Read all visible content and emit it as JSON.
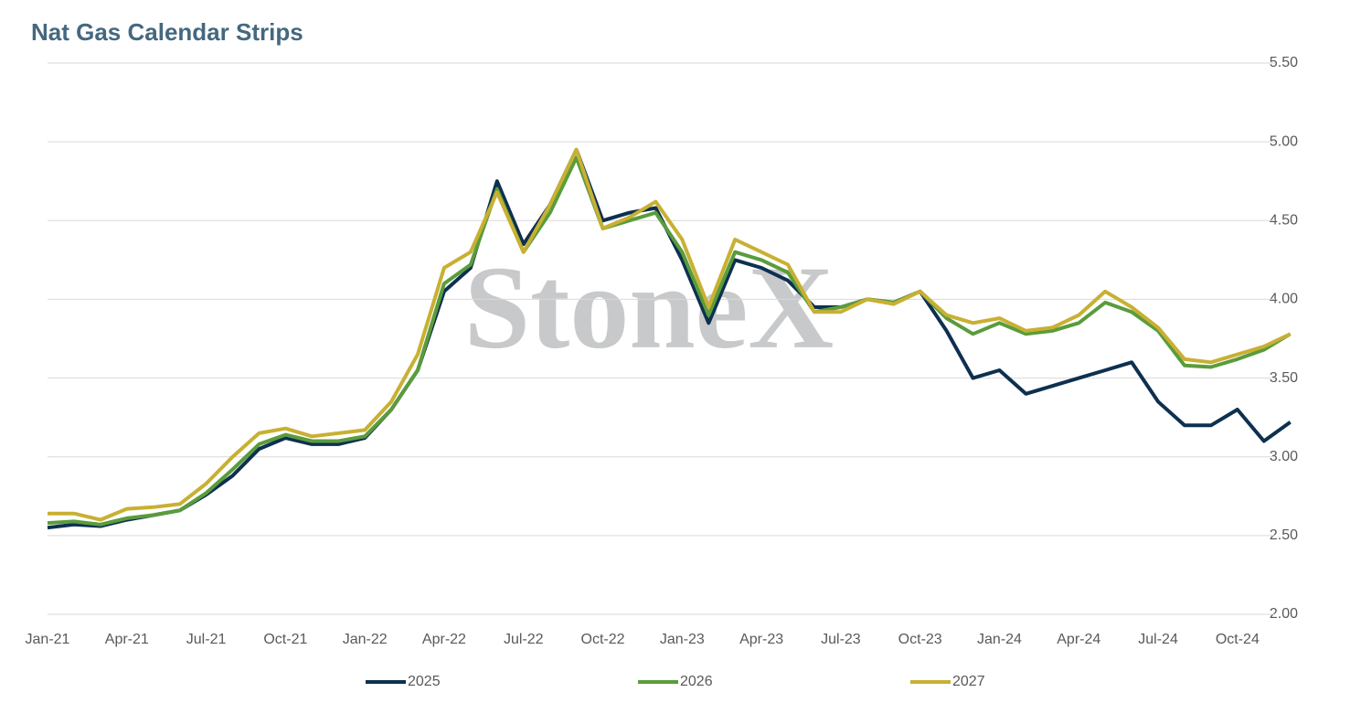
{
  "chart_data": {
    "type": "line",
    "title": "Nat Gas Calendar Strips",
    "watermark": "StoneX",
    "categories": [
      "Jan-21",
      null,
      null,
      "Apr-21",
      null,
      null,
      "Jul-21",
      null,
      null,
      "Oct-21",
      null,
      null,
      "Jan-22",
      null,
      null,
      "Apr-22",
      null,
      null,
      "Jul-22",
      null,
      null,
      "Oct-22",
      null,
      null,
      "Jan-23",
      null,
      null,
      "Apr-23",
      null,
      null,
      "Jul-23",
      null,
      null,
      "Oct-23",
      null,
      null,
      "Jan-24",
      null,
      null,
      "Apr-24",
      null,
      null,
      "Jul-24",
      null,
      null,
      "Oct-24",
      null,
      null
    ],
    "series": [
      {
        "name": "2025",
        "color": "#0e3050",
        "values": [
          2.55,
          2.57,
          2.56,
          2.6,
          2.63,
          2.66,
          2.76,
          2.88,
          3.05,
          3.12,
          3.08,
          3.08,
          3.12,
          3.3,
          3.55,
          4.05,
          4.2,
          4.75,
          4.35,
          4.6,
          4.95,
          4.5,
          4.55,
          4.58,
          4.25,
          3.85,
          4.25,
          4.2,
          4.12,
          3.95,
          3.95,
          4.0,
          3.98,
          4.05,
          3.8,
          3.5,
          3.55,
          3.4,
          3.45,
          3.5,
          3.55,
          3.6,
          3.35,
          3.2,
          3.2,
          3.3,
          3.1,
          3.22
        ]
      },
      {
        "name": "2026",
        "color": "#5a9c3c",
        "values": [
          2.58,
          2.59,
          2.57,
          2.61,
          2.63,
          2.66,
          2.77,
          2.92,
          3.08,
          3.14,
          3.1,
          3.1,
          3.13,
          3.3,
          3.55,
          4.1,
          4.22,
          4.7,
          4.3,
          4.55,
          4.9,
          4.45,
          4.5,
          4.55,
          4.3,
          3.9,
          4.3,
          4.25,
          4.17,
          3.92,
          3.95,
          4.0,
          3.98,
          4.05,
          3.88,
          3.78,
          3.85,
          3.78,
          3.8,
          3.85,
          3.98,
          3.92,
          3.8,
          3.58,
          3.57,
          3.62,
          3.68,
          3.78
        ]
      },
      {
        "name": "2027",
        "color": "#c8b032",
        "values": [
          2.64,
          2.64,
          2.6,
          2.67,
          2.68,
          2.7,
          2.83,
          3.0,
          3.15,
          3.18,
          3.13,
          3.15,
          3.17,
          3.35,
          3.65,
          4.2,
          4.3,
          4.68,
          4.3,
          4.6,
          4.95,
          4.45,
          4.52,
          4.62,
          4.38,
          3.95,
          4.38,
          4.3,
          4.22,
          3.92,
          3.92,
          4.0,
          3.97,
          4.05,
          3.9,
          3.85,
          3.88,
          3.8,
          3.82,
          3.9,
          4.05,
          3.95,
          3.82,
          3.62,
          3.6,
          3.65,
          3.7,
          3.78
        ]
      }
    ],
    "ylim": [
      2,
      5.5
    ],
    "yticks": [
      {
        "value": 2,
        "label": "2.00"
      },
      {
        "value": 2.5,
        "label": "2.50"
      },
      {
        "value": 3,
        "label": "3.00"
      },
      {
        "value": 3.5,
        "label": "3.50"
      },
      {
        "value": 4,
        "label": "4.00"
      },
      {
        "value": 4.5,
        "label": "4.50"
      },
      {
        "value": 5,
        "label": "5.00"
      },
      {
        "value": 5.5,
        "label": "5.50"
      }
    ],
    "grid": true,
    "legend": "bottom"
  }
}
